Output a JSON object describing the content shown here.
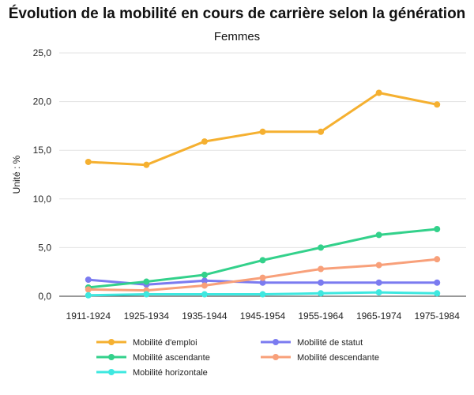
{
  "chart_data": {
    "type": "line",
    "title": "Évolution de la mobilité en cours de carrière selon la génération",
    "subtitle": "Femmes",
    "ylabel": "Unité : %",
    "xlabel": "",
    "categories": [
      "1911-1924",
      "1925-1934",
      "1935-1944",
      "1945-1954",
      "1955-1964",
      "1965-1974",
      "1975-1984"
    ],
    "ylim": [
      0,
      25
    ],
    "yticks": [
      "0,0",
      "5,0",
      "10,0",
      "15,0",
      "20,0",
      "25,0"
    ],
    "grid": true,
    "legend_position": "bottom",
    "series": [
      {
        "name": "Mobilité d'emploi",
        "color": "#F5B030",
        "values": [
          13.8,
          13.5,
          15.9,
          16.9,
          16.9,
          20.9,
          19.7
        ]
      },
      {
        "name": "Mobilité de statut",
        "color": "#7B7BF0",
        "values": [
          1.7,
          1.2,
          1.6,
          1.4,
          1.4,
          1.4,
          1.4
        ]
      },
      {
        "name": "Mobilité ascendante",
        "color": "#33D18B",
        "values": [
          0.9,
          1.5,
          2.2,
          3.7,
          5.0,
          6.3,
          6.9
        ]
      },
      {
        "name": "Mobilité descendante",
        "color": "#F8A07A",
        "values": [
          0.7,
          0.6,
          1.1,
          1.9,
          2.8,
          3.2,
          3.8
        ]
      },
      {
        "name": "Mobilité horizontale",
        "color": "#3EE8E0",
        "values": [
          0.1,
          0.2,
          0.2,
          0.2,
          0.3,
          0.4,
          0.3
        ]
      }
    ]
  }
}
